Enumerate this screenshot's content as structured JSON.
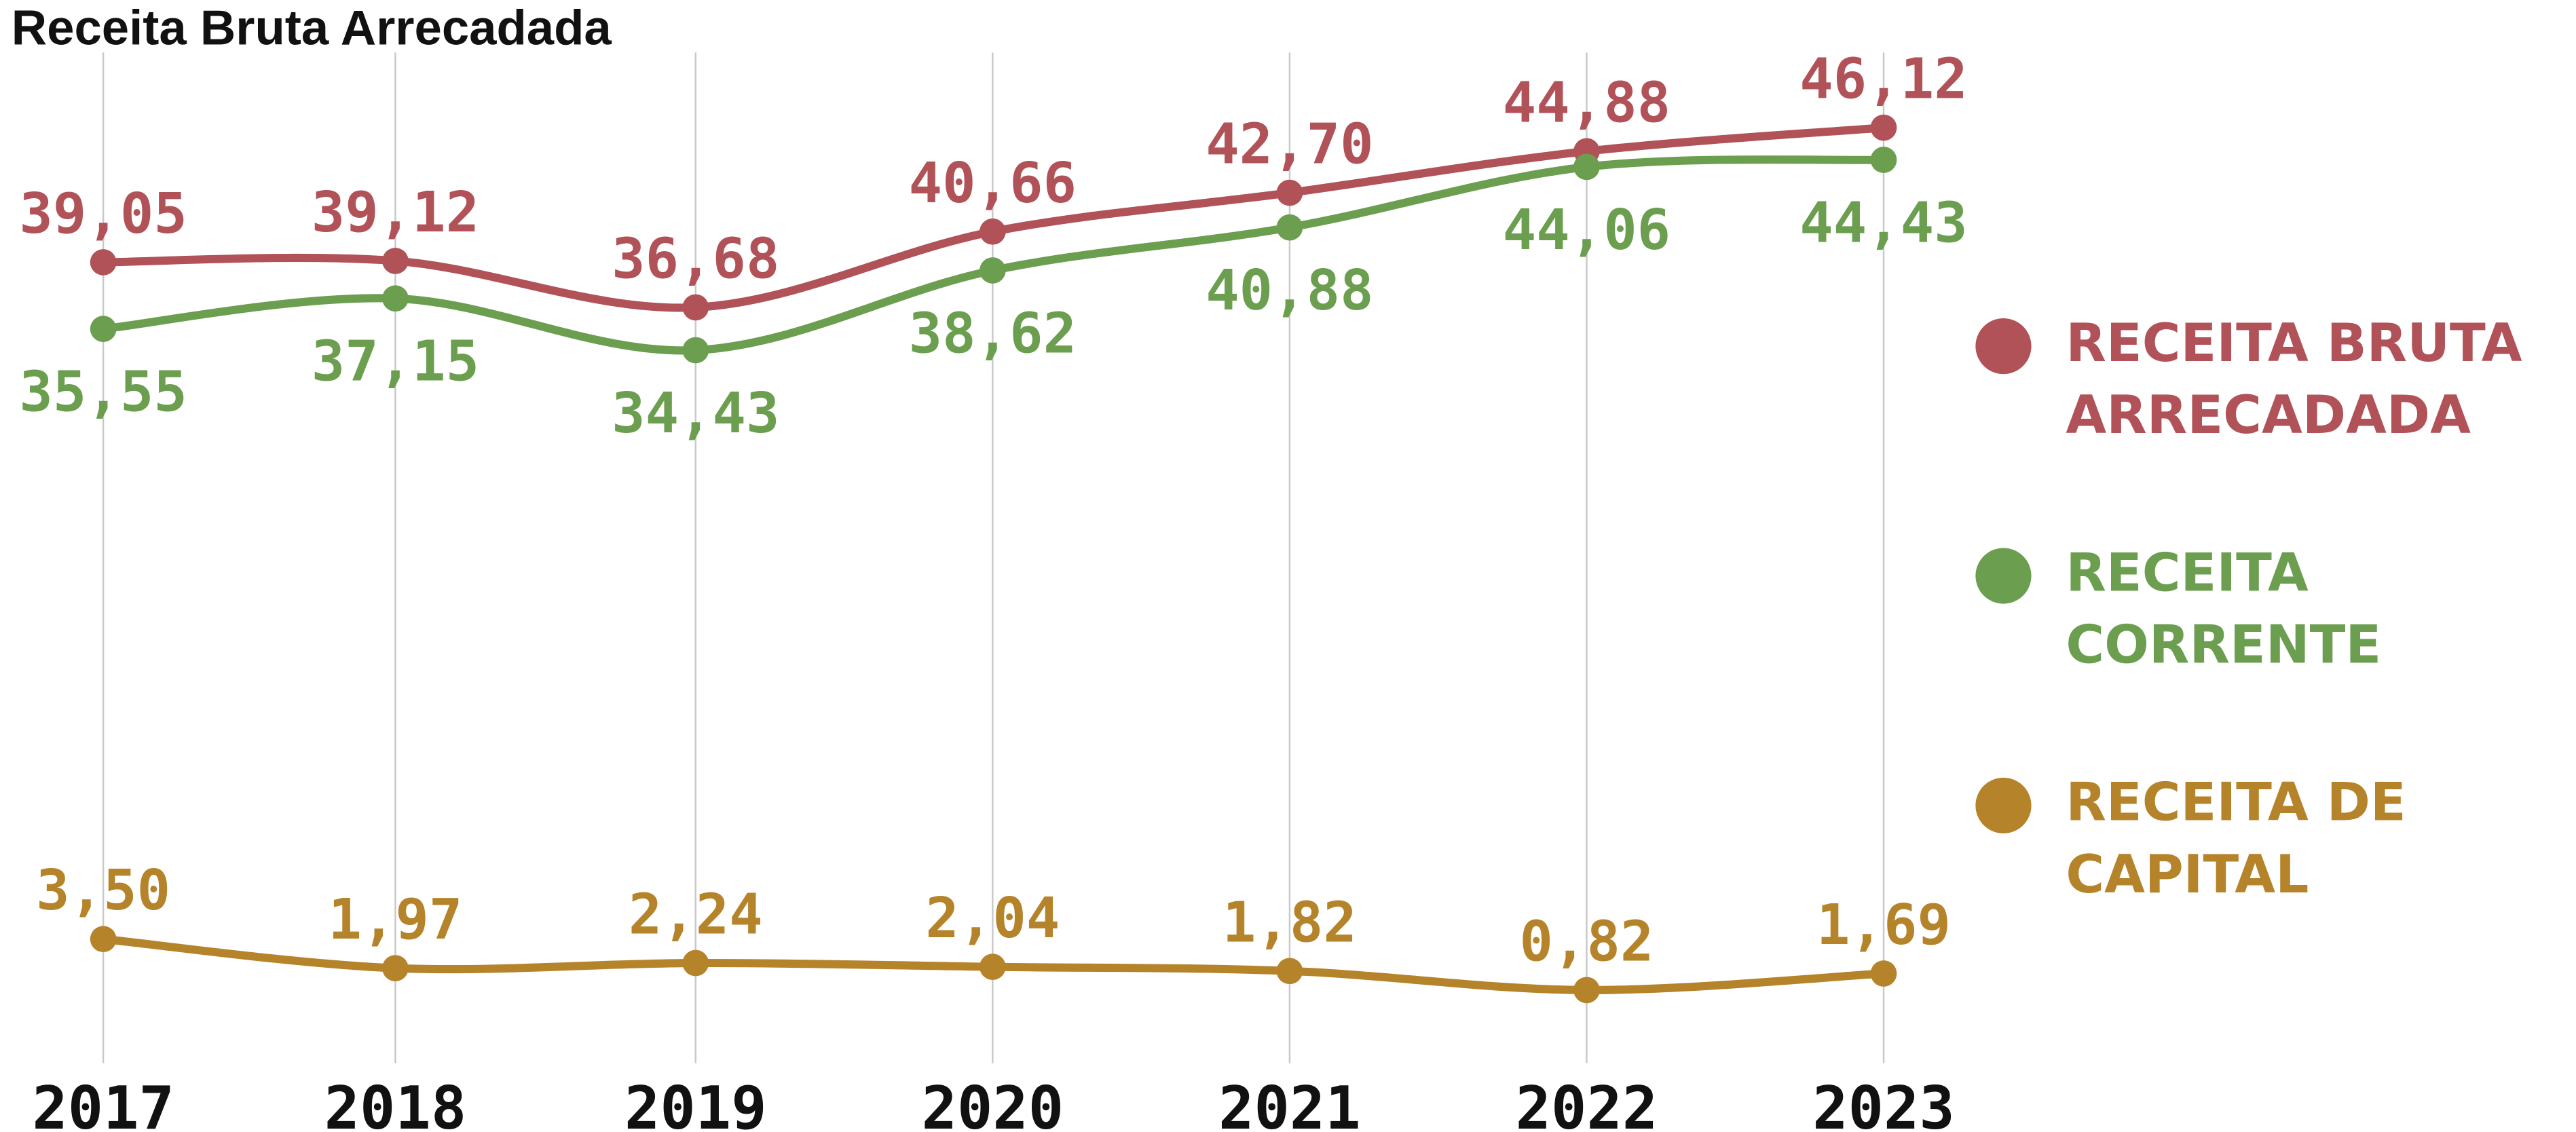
{
  "chart_data": {
    "type": "line",
    "title": "Receita Bruta Arrecadada",
    "categories": [
      "2017",
      "2018",
      "2019",
      "2020",
      "2021",
      "2022",
      "2023"
    ],
    "series": [
      {
        "name": "RECEITA BRUTA ARRECADADA",
        "color": "#b05258",
        "values": [
          39.05,
          39.12,
          36.68,
          40.66,
          42.7,
          44.88,
          46.12
        ],
        "value_labels": [
          "39,05",
          "39,12",
          "36,68",
          "40,66",
          "42,70",
          "44,88",
          "46,12"
        ]
      },
      {
        "name": "RECEITA CORRENTE",
        "color": "#6c9e4f",
        "values": [
          35.55,
          37.15,
          34.43,
          38.62,
          40.88,
          44.06,
          44.43
        ],
        "value_labels": [
          "35,55",
          "37,15",
          "34,43",
          "38,62",
          "40,88",
          "44,06",
          "44,43"
        ]
      },
      {
        "name": "RECEITA DE CAPITAL",
        "color": "#b5832a",
        "values": [
          3.5,
          1.97,
          2.24,
          2.04,
          1.82,
          0.82,
          1.69
        ],
        "value_labels": [
          "3,50",
          "1,97",
          "2,24",
          "2,04",
          "1,82",
          "0,82",
          "1,69"
        ]
      }
    ],
    "ylim": [
      0,
      48
    ],
    "grid": true
  }
}
